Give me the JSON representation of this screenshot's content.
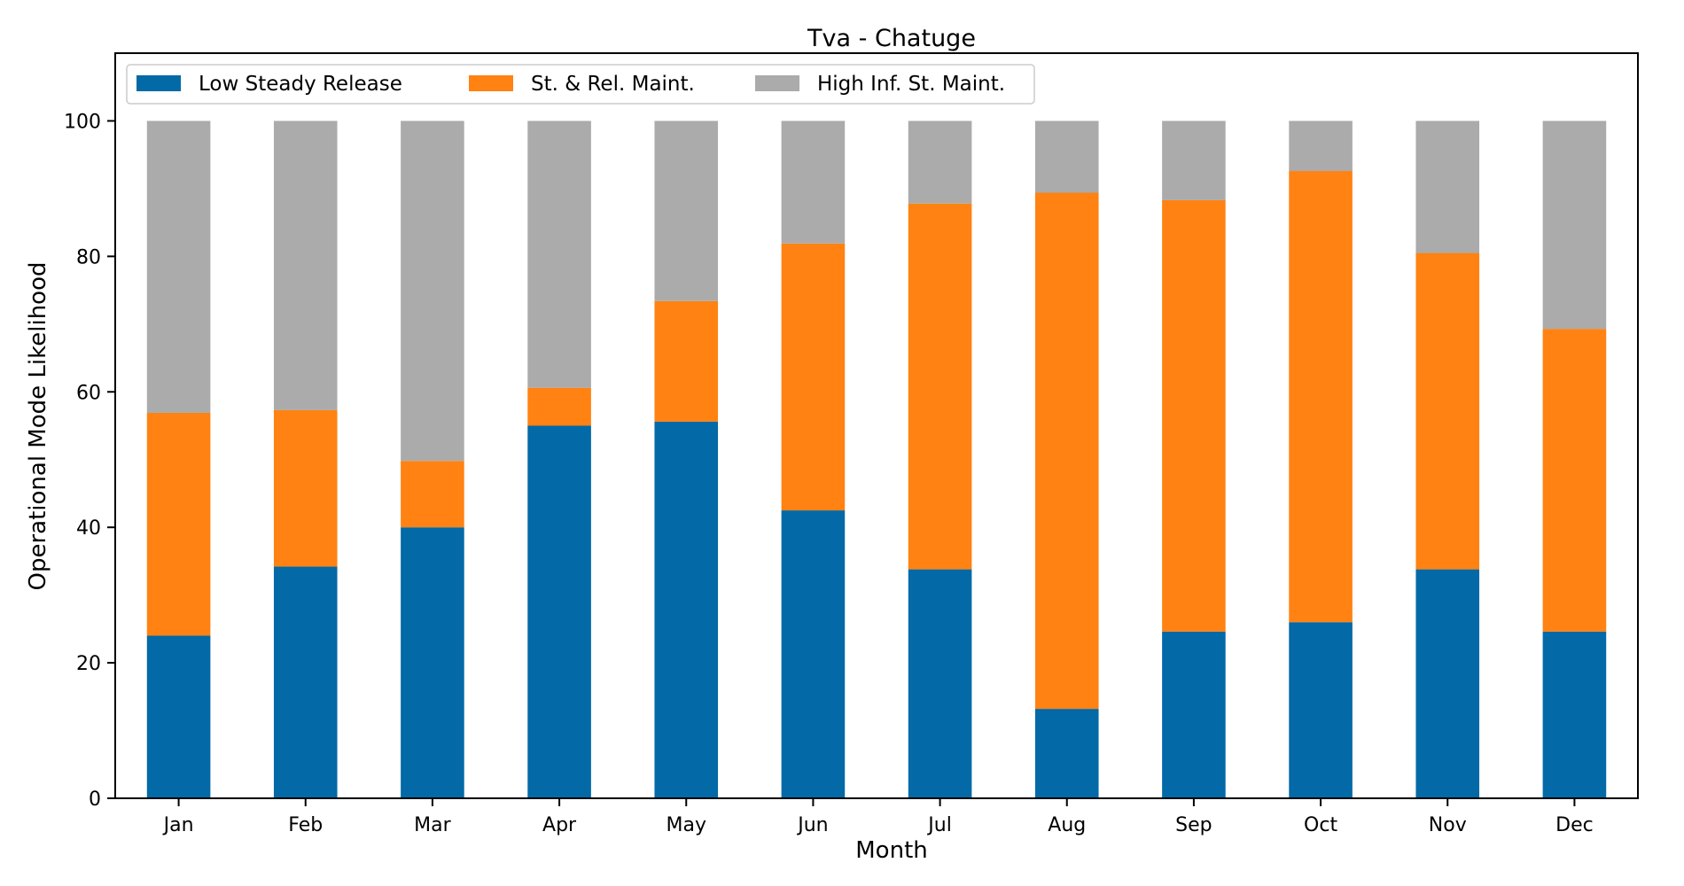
{
  "chart_data": {
    "type": "bar",
    "stacked": true,
    "title": "Tva - Chatuge",
    "xlabel": "Month",
    "ylabel": "Operational Mode Likelihood",
    "ylim": [
      0,
      110
    ],
    "yticks": [
      0,
      20,
      40,
      60,
      80,
      100
    ],
    "grid": false,
    "legend_position": "top-left",
    "categories": [
      "Jan",
      "Feb",
      "Mar",
      "Apr",
      "May",
      "Jun",
      "Jul",
      "Aug",
      "Sep",
      "Oct",
      "Nov",
      "Dec"
    ],
    "series": [
      {
        "name": "Low Steady Release",
        "color": "#0369a7",
        "values": [
          24,
          34.2,
          40,
          55,
          55.6,
          42.5,
          33.8,
          13.2,
          24.6,
          26,
          33.8,
          24.6
        ]
      },
      {
        "name": "St. & Rel. Maint.",
        "color": "#ff8212",
        "values": [
          32.9,
          23.1,
          9.8,
          5.6,
          17.8,
          39.4,
          54,
          76.2,
          63.7,
          66.6,
          46.7,
          44.7
        ]
      },
      {
        "name": "High Inf. St. Maint.",
        "color": "#ababab",
        "values": [
          43.1,
          42.7,
          50.2,
          39.4,
          26.6,
          18.1,
          12.2,
          10.6,
          11.7,
          7.4,
          19.5,
          30.7
        ]
      }
    ]
  }
}
